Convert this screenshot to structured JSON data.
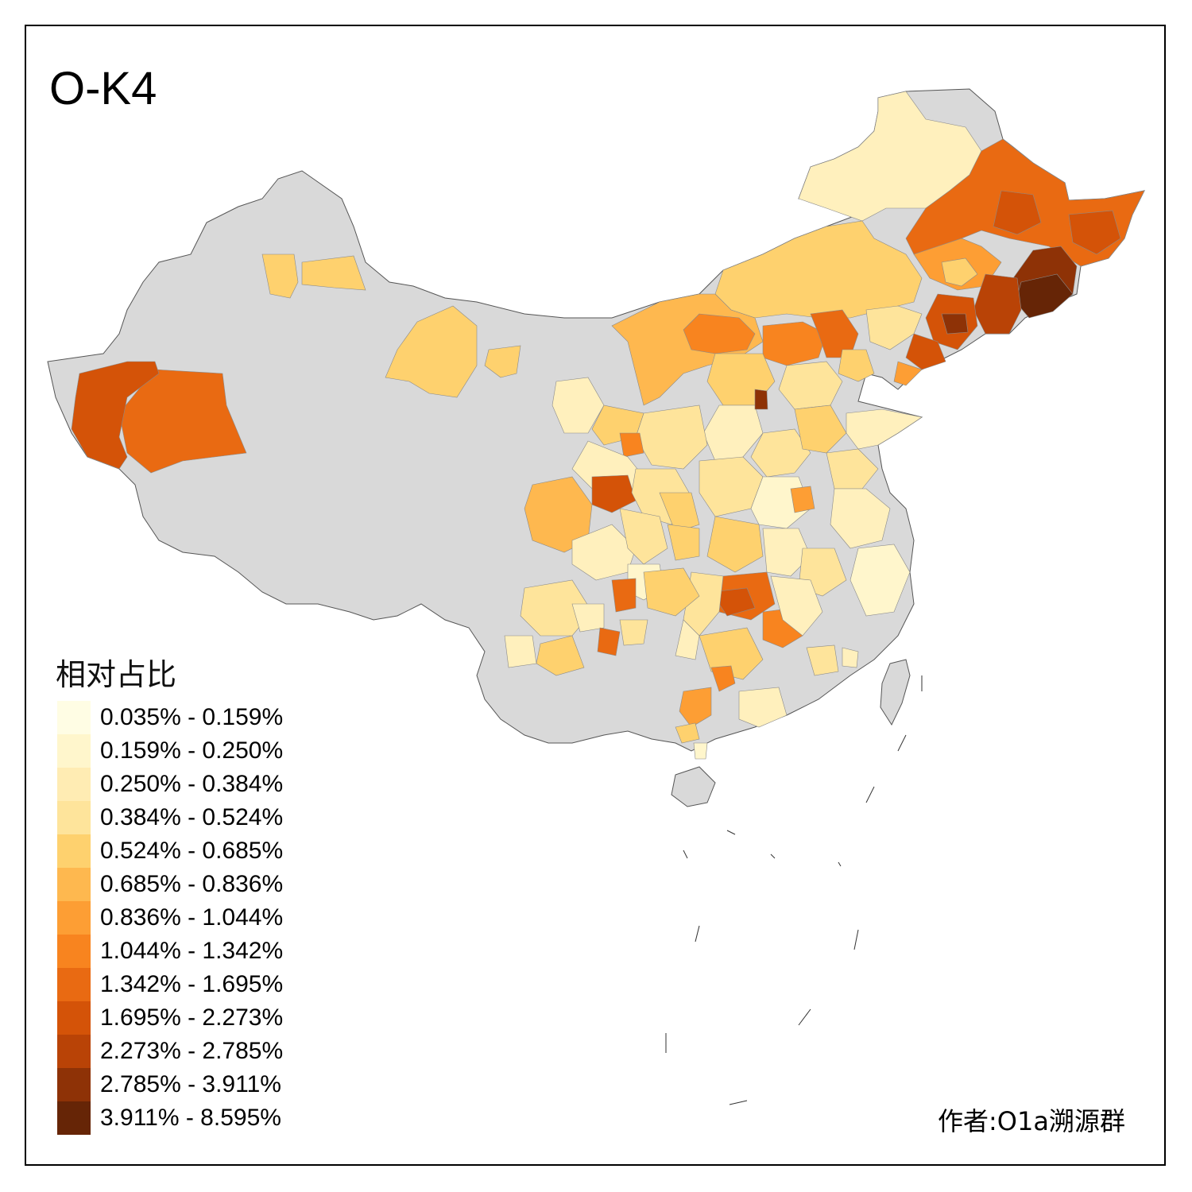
{
  "title": "O-K4",
  "legend": {
    "title": "相对占比",
    "items": [
      {
        "label": "0.035% - 0.159%",
        "color": "#fffde4"
      },
      {
        "label": "0.159% - 0.250%",
        "color": "#fff6cc"
      },
      {
        "label": "0.250% - 0.384%",
        "color": "#ffecb3"
      },
      {
        "label": "0.384% - 0.524%",
        "color": "#fee49b"
      },
      {
        "label": "0.524% - 0.685%",
        "color": "#fed16e"
      },
      {
        "label": "0.685% - 0.836%",
        "color": "#feb84f"
      },
      {
        "label": "0.836% - 1.044%",
        "color": "#fd9e34"
      },
      {
        "label": "1.044% - 1.342%",
        "color": "#f8841f"
      },
      {
        "label": "1.342% - 1.695%",
        "color": "#e96a12"
      },
      {
        "label": "1.695% - 2.273%",
        "color": "#d45308"
      },
      {
        "label": "2.273% - 2.785%",
        "color": "#b94306"
      },
      {
        "label": "2.785% - 3.911%",
        "color": "#8e3206"
      },
      {
        "label": "3.911% - 8.595%",
        "color": "#662506"
      }
    ]
  },
  "no_data_color": "#d9d9d9",
  "credit": "作者:O1a溯源群"
}
